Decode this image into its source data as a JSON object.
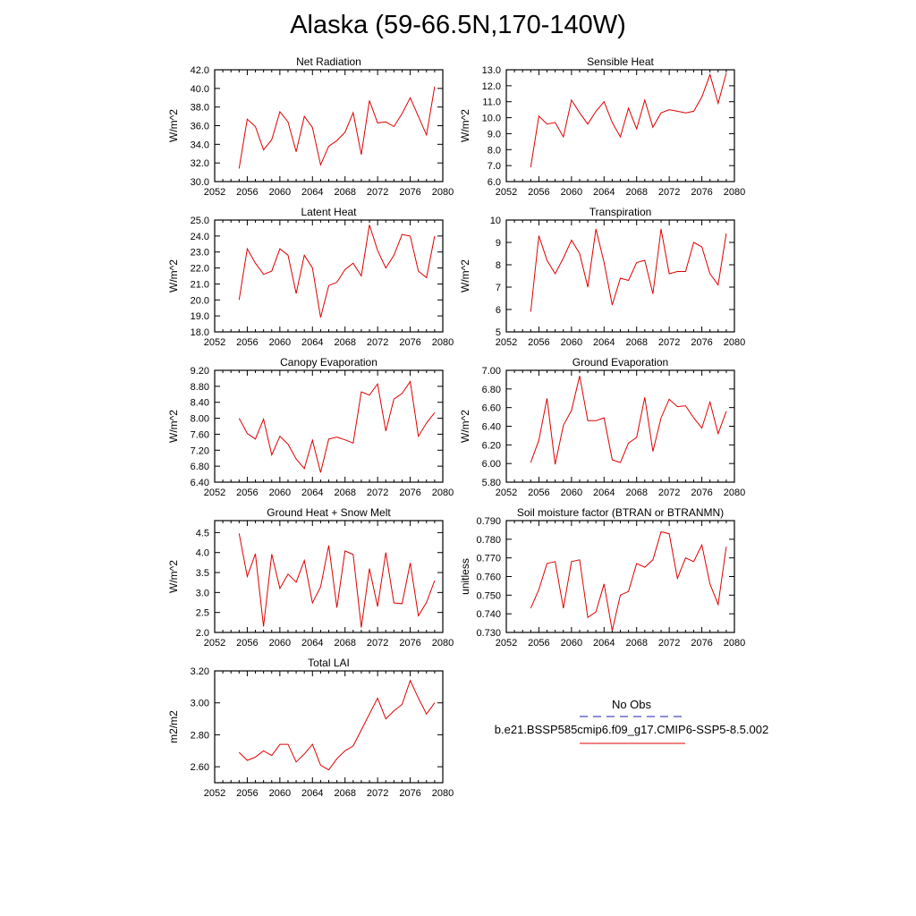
{
  "title": "Alaska (59-66.5N,170-140W)",
  "legend": {
    "obs_label": "No Obs",
    "obs_color": "#4b4bc8",
    "model_label": "b.e21.BSSP585cmip6.f09_g17.CMIP6-SSP5-8.5.002",
    "model_color": "#e00000"
  },
  "chart_data": [
    {
      "type": "line",
      "title": "Net Radiation",
      "ylabel": "W/m^2",
      "xlim": [
        2052,
        2080
      ],
      "ylim": [
        30,
        42
      ],
      "x_ticks": [
        "2052",
        "2056",
        "2060",
        "2064",
        "2068",
        "2072",
        "2076",
        "2080"
      ],
      "y_ticks": [
        "30.0",
        "32.0",
        "34.0",
        "36.0",
        "38.0",
        "40.0",
        "42.0"
      ],
      "x": [
        2055,
        2056,
        2057,
        2058,
        2059,
        2060,
        2061,
        2062,
        2063,
        2064,
        2065,
        2066,
        2067,
        2068,
        2069,
        2070,
        2071,
        2072,
        2073,
        2074,
        2075,
        2076,
        2077,
        2078,
        2079
      ],
      "series": [
        {
          "values": [
            31.4,
            36.7,
            35.9,
            33.4,
            34.5,
            37.5,
            36.4,
            33.2,
            37.0,
            35.8,
            31.8,
            33.8,
            34.4,
            35.3,
            37.4,
            32.9,
            38.7,
            36.3,
            36.4,
            35.9,
            37.3,
            39.0,
            37.0,
            35.0,
            40.2
          ]
        }
      ]
    },
    {
      "type": "line",
      "title": "Sensible Heat",
      "ylabel": "W/m^2",
      "xlim": [
        2052,
        2080
      ],
      "ylim": [
        6,
        13
      ],
      "x_ticks": [
        "2052",
        "2056",
        "2060",
        "2064",
        "2068",
        "2072",
        "2076",
        "2080"
      ],
      "y_ticks": [
        "6.0",
        "7.0",
        "8.0",
        "9.0",
        "10.0",
        "11.0",
        "12.0",
        "13.0"
      ],
      "x": [
        2055,
        2056,
        2057,
        2058,
        2059,
        2060,
        2061,
        2062,
        2063,
        2064,
        2065,
        2066,
        2067,
        2068,
        2069,
        2070,
        2071,
        2072,
        2073,
        2074,
        2075,
        2076,
        2077,
        2078,
        2079
      ],
      "series": [
        {
          "values": [
            6.9,
            10.1,
            9.6,
            9.7,
            8.8,
            11.1,
            10.3,
            9.6,
            10.4,
            11.0,
            9.7,
            8.8,
            10.6,
            9.3,
            11.1,
            9.4,
            10.3,
            10.5,
            10.4,
            10.3,
            10.4,
            11.3,
            12.7,
            10.9,
            12.8
          ]
        }
      ]
    },
    {
      "type": "line",
      "title": "Latent Heat",
      "ylabel": "W/m^2",
      "xlim": [
        2052,
        2080
      ],
      "ylim": [
        18,
        25
      ],
      "x_ticks": [
        "2052",
        "2056",
        "2060",
        "2064",
        "2068",
        "2072",
        "2076",
        "2080"
      ],
      "y_ticks": [
        "18.0",
        "19.0",
        "20.0",
        "21.0",
        "22.0",
        "23.0",
        "24.0",
        "25.0"
      ],
      "x": [
        2055,
        2056,
        2057,
        2058,
        2059,
        2060,
        2061,
        2062,
        2063,
        2064,
        2065,
        2066,
        2067,
        2068,
        2069,
        2070,
        2071,
        2072,
        2073,
        2074,
        2075,
        2076,
        2077,
        2078,
        2079
      ],
      "series": [
        {
          "values": [
            20.0,
            23.2,
            22.3,
            21.6,
            21.8,
            23.2,
            22.8,
            20.4,
            22.8,
            22.0,
            18.9,
            20.9,
            21.1,
            21.9,
            22.3,
            21.5,
            24.7,
            23.1,
            22.0,
            22.8,
            24.1,
            24.0,
            21.8,
            21.4,
            24.0
          ]
        }
      ]
    },
    {
      "type": "line",
      "title": "Transpiration",
      "ylabel": "W/m^2",
      "xlim": [
        2052,
        2080
      ],
      "ylim": [
        5,
        10
      ],
      "x_ticks": [
        "2052",
        "2056",
        "2060",
        "2064",
        "2068",
        "2072",
        "2076",
        "2080"
      ],
      "y_ticks": [
        "5",
        "6",
        "7",
        "8",
        "9",
        "10"
      ],
      "x": [
        2055,
        2056,
        2057,
        2058,
        2059,
        2060,
        2061,
        2062,
        2063,
        2064,
        2065,
        2066,
        2067,
        2068,
        2069,
        2070,
        2071,
        2072,
        2073,
        2074,
        2075,
        2076,
        2077,
        2078,
        2079
      ],
      "series": [
        {
          "values": [
            5.9,
            9.3,
            8.2,
            7.6,
            8.3,
            9.1,
            8.5,
            7.0,
            9.6,
            8.1,
            6.2,
            7.4,
            7.3,
            8.1,
            8.2,
            6.7,
            9.6,
            7.6,
            7.7,
            7.7,
            9.0,
            8.8,
            7.6,
            7.1,
            9.4
          ]
        }
      ]
    },
    {
      "type": "line",
      "title": "Canopy Evaporation",
      "ylabel": "W/m^2",
      "xlim": [
        2052,
        2080
      ],
      "ylim": [
        6.4,
        9.2
      ],
      "x_ticks": [
        "2052",
        "2056",
        "2060",
        "2064",
        "2068",
        "2072",
        "2076",
        "2080"
      ],
      "y_ticks": [
        "6.40",
        "6.80",
        "7.20",
        "7.60",
        "8.00",
        "8.40",
        "8.80",
        "9.20"
      ],
      "x": [
        2055,
        2056,
        2057,
        2058,
        2059,
        2060,
        2061,
        2062,
        2063,
        2064,
        2065,
        2066,
        2067,
        2068,
        2069,
        2070,
        2071,
        2072,
        2073,
        2074,
        2075,
        2076,
        2077,
        2078,
        2079
      ],
      "series": [
        {
          "values": [
            8.0,
            7.62,
            7.48,
            7.98,
            7.08,
            7.55,
            7.35,
            6.98,
            6.74,
            7.45,
            6.64,
            7.48,
            7.53,
            7.46,
            7.38,
            8.66,
            8.58,
            8.86,
            7.68,
            8.48,
            8.62,
            8.92,
            7.55,
            7.88,
            8.14
          ]
        }
      ]
    },
    {
      "type": "line",
      "title": "Ground Evaporation",
      "ylabel": "W/m^2",
      "xlim": [
        2052,
        2080
      ],
      "ylim": [
        5.8,
        7.0
      ],
      "x_ticks": [
        "2052",
        "2056",
        "2060",
        "2064",
        "2068",
        "2072",
        "2076",
        "2080"
      ],
      "y_ticks": [
        "5.80",
        "6.00",
        "6.20",
        "6.40",
        "6.60",
        "6.80",
        "7.00"
      ],
      "x": [
        2055,
        2056,
        2057,
        2058,
        2059,
        2060,
        2061,
        2062,
        2063,
        2064,
        2065,
        2066,
        2067,
        2068,
        2069,
        2070,
        2071,
        2072,
        2073,
        2074,
        2075,
        2076,
        2077,
        2078,
        2079
      ],
      "series": [
        {
          "values": [
            6.01,
            6.25,
            6.7,
            5.99,
            6.41,
            6.57,
            6.94,
            6.46,
            6.46,
            6.49,
            6.04,
            6.01,
            6.22,
            6.28,
            6.71,
            6.13,
            6.49,
            6.69,
            6.61,
            6.62,
            6.49,
            6.38,
            6.66,
            6.32,
            6.56
          ]
        }
      ]
    },
    {
      "type": "line",
      "title": "Ground Heat + Snow Melt",
      "ylabel": "W/m^2",
      "xlim": [
        2052,
        2080
      ],
      "ylim": [
        2.0,
        4.8
      ],
      "x_ticks": [
        "2052",
        "2056",
        "2060",
        "2064",
        "2068",
        "2072",
        "2076",
        "2080"
      ],
      "y_ticks": [
        "2.0",
        "2.5",
        "3.0",
        "3.5",
        "4.0",
        "4.5"
      ],
      "x": [
        2055,
        2056,
        2057,
        2058,
        2059,
        2060,
        2061,
        2062,
        2063,
        2064,
        2065,
        2066,
        2067,
        2068,
        2069,
        2070,
        2071,
        2072,
        2073,
        2074,
        2075,
        2076,
        2077,
        2078,
        2079
      ],
      "series": [
        {
          "values": [
            4.48,
            3.4,
            3.97,
            2.15,
            3.96,
            3.1,
            3.46,
            3.26,
            3.8,
            2.74,
            3.14,
            4.18,
            2.62,
            4.04,
            3.95,
            2.12,
            3.6,
            2.65,
            4.0,
            2.74,
            2.72,
            3.74,
            2.42,
            2.75,
            3.3
          ]
        }
      ]
    },
    {
      "type": "line",
      "title": "Soil moisture factor (BTRAN or BTRANMN)",
      "ylabel": "unitless",
      "xlim": [
        2052,
        2080
      ],
      "ylim": [
        0.73,
        0.79
      ],
      "x_ticks": [
        "2052",
        "2056",
        "2060",
        "2064",
        "2068",
        "2072",
        "2076",
        "2080"
      ],
      "y_ticks": [
        "0.730",
        "0.740",
        "0.750",
        "0.760",
        "0.770",
        "0.780",
        "0.790"
      ],
      "x": [
        2055,
        2056,
        2057,
        2058,
        2059,
        2060,
        2061,
        2062,
        2063,
        2064,
        2065,
        2066,
        2067,
        2068,
        2069,
        2070,
        2071,
        2072,
        2073,
        2074,
        2075,
        2076,
        2077,
        2078,
        2079
      ],
      "series": [
        {
          "values": [
            0.743,
            0.753,
            0.767,
            0.768,
            0.743,
            0.768,
            0.769,
            0.738,
            0.741,
            0.756,
            0.731,
            0.75,
            0.752,
            0.767,
            0.765,
            0.769,
            0.784,
            0.783,
            0.759,
            0.77,
            0.768,
            0.777,
            0.756,
            0.745,
            0.776
          ]
        }
      ]
    },
    {
      "type": "line",
      "title": "Total LAI",
      "ylabel": "m2/m2",
      "xlim": [
        2052,
        2080
      ],
      "ylim": [
        2.5,
        3.2
      ],
      "x_ticks": [
        "2052",
        "2056",
        "2060",
        "2064",
        "2068",
        "2072",
        "2076",
        "2080"
      ],
      "y_ticks": [
        "2.60",
        "2.80",
        "3.00",
        "3.20"
      ],
      "x": [
        2055,
        2056,
        2057,
        2058,
        2059,
        2060,
        2061,
        2062,
        2063,
        2064,
        2065,
        2066,
        2067,
        2068,
        2069,
        2070,
        2071,
        2072,
        2073,
        2074,
        2075,
        2076,
        2077,
        2078,
        2079
      ],
      "series": [
        {
          "values": [
            2.69,
            2.64,
            2.66,
            2.7,
            2.67,
            2.74,
            2.74,
            2.63,
            2.68,
            2.74,
            2.61,
            2.58,
            2.65,
            2.7,
            2.73,
            2.83,
            2.93,
            3.03,
            2.9,
            2.95,
            2.99,
            3.14,
            3.03,
            2.93,
            3.0
          ]
        }
      ]
    }
  ]
}
